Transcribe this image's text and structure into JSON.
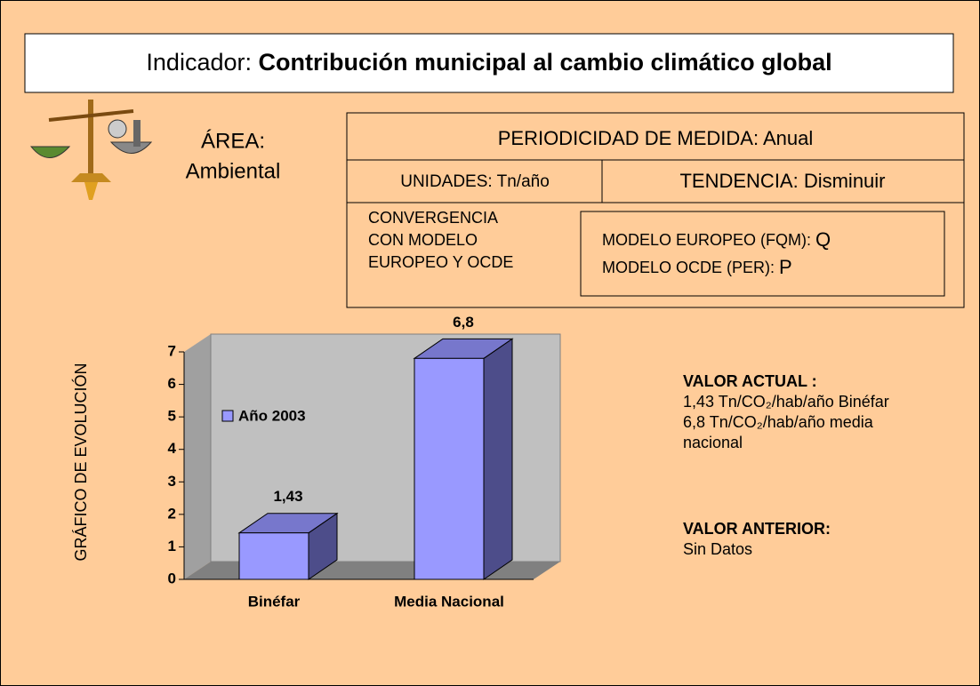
{
  "header": {
    "label": "Indicador:",
    "title": "Contribución municipal al cambio climático global"
  },
  "area": {
    "label": "ÁREA:",
    "value": "Ambiental"
  },
  "info": {
    "periodicidad": "PERIODICIDAD DE MEDIDA: Anual",
    "unidades": "UNIDADES: Tn/año",
    "tendencia": "TENDENCIA: Disminuir",
    "convergencia": [
      "CONVERGENCIA",
      "CON MODELO",
      "EUROPEO Y OCDE"
    ],
    "modelo_europeo": {
      "label": "MODELO EUROPEO (FQM):",
      "value": "Q"
    },
    "modelo_ocde": {
      "label": "MODELO OCDE (PER):",
      "value": "P"
    }
  },
  "chart_data": {
    "type": "bar",
    "y_label": "GRÁFICO DE EVOLUCIÓN",
    "categories": [
      "Binéfar",
      "Media Nacional"
    ],
    "series": [
      {
        "name": "Año 2003",
        "color": "#9999ff",
        "values": [
          1.43,
          6.8
        ],
        "value_labels": [
          "1,43",
          "6,8"
        ]
      }
    ],
    "ylim": [
      0,
      7
    ],
    "yticks": [
      0,
      1,
      2,
      3,
      4,
      5,
      6,
      7
    ]
  },
  "valor_actual": {
    "label": "VALOR ACTUAL :",
    "lines": [
      "1,43 Tn/CO₂/hab/año Binéfar",
      "6,8 Tn/CO₂/hab/año media nacional"
    ]
  },
  "valor_anterior": {
    "label": "VALOR ANTERIOR:",
    "value": "Sin Datos"
  }
}
